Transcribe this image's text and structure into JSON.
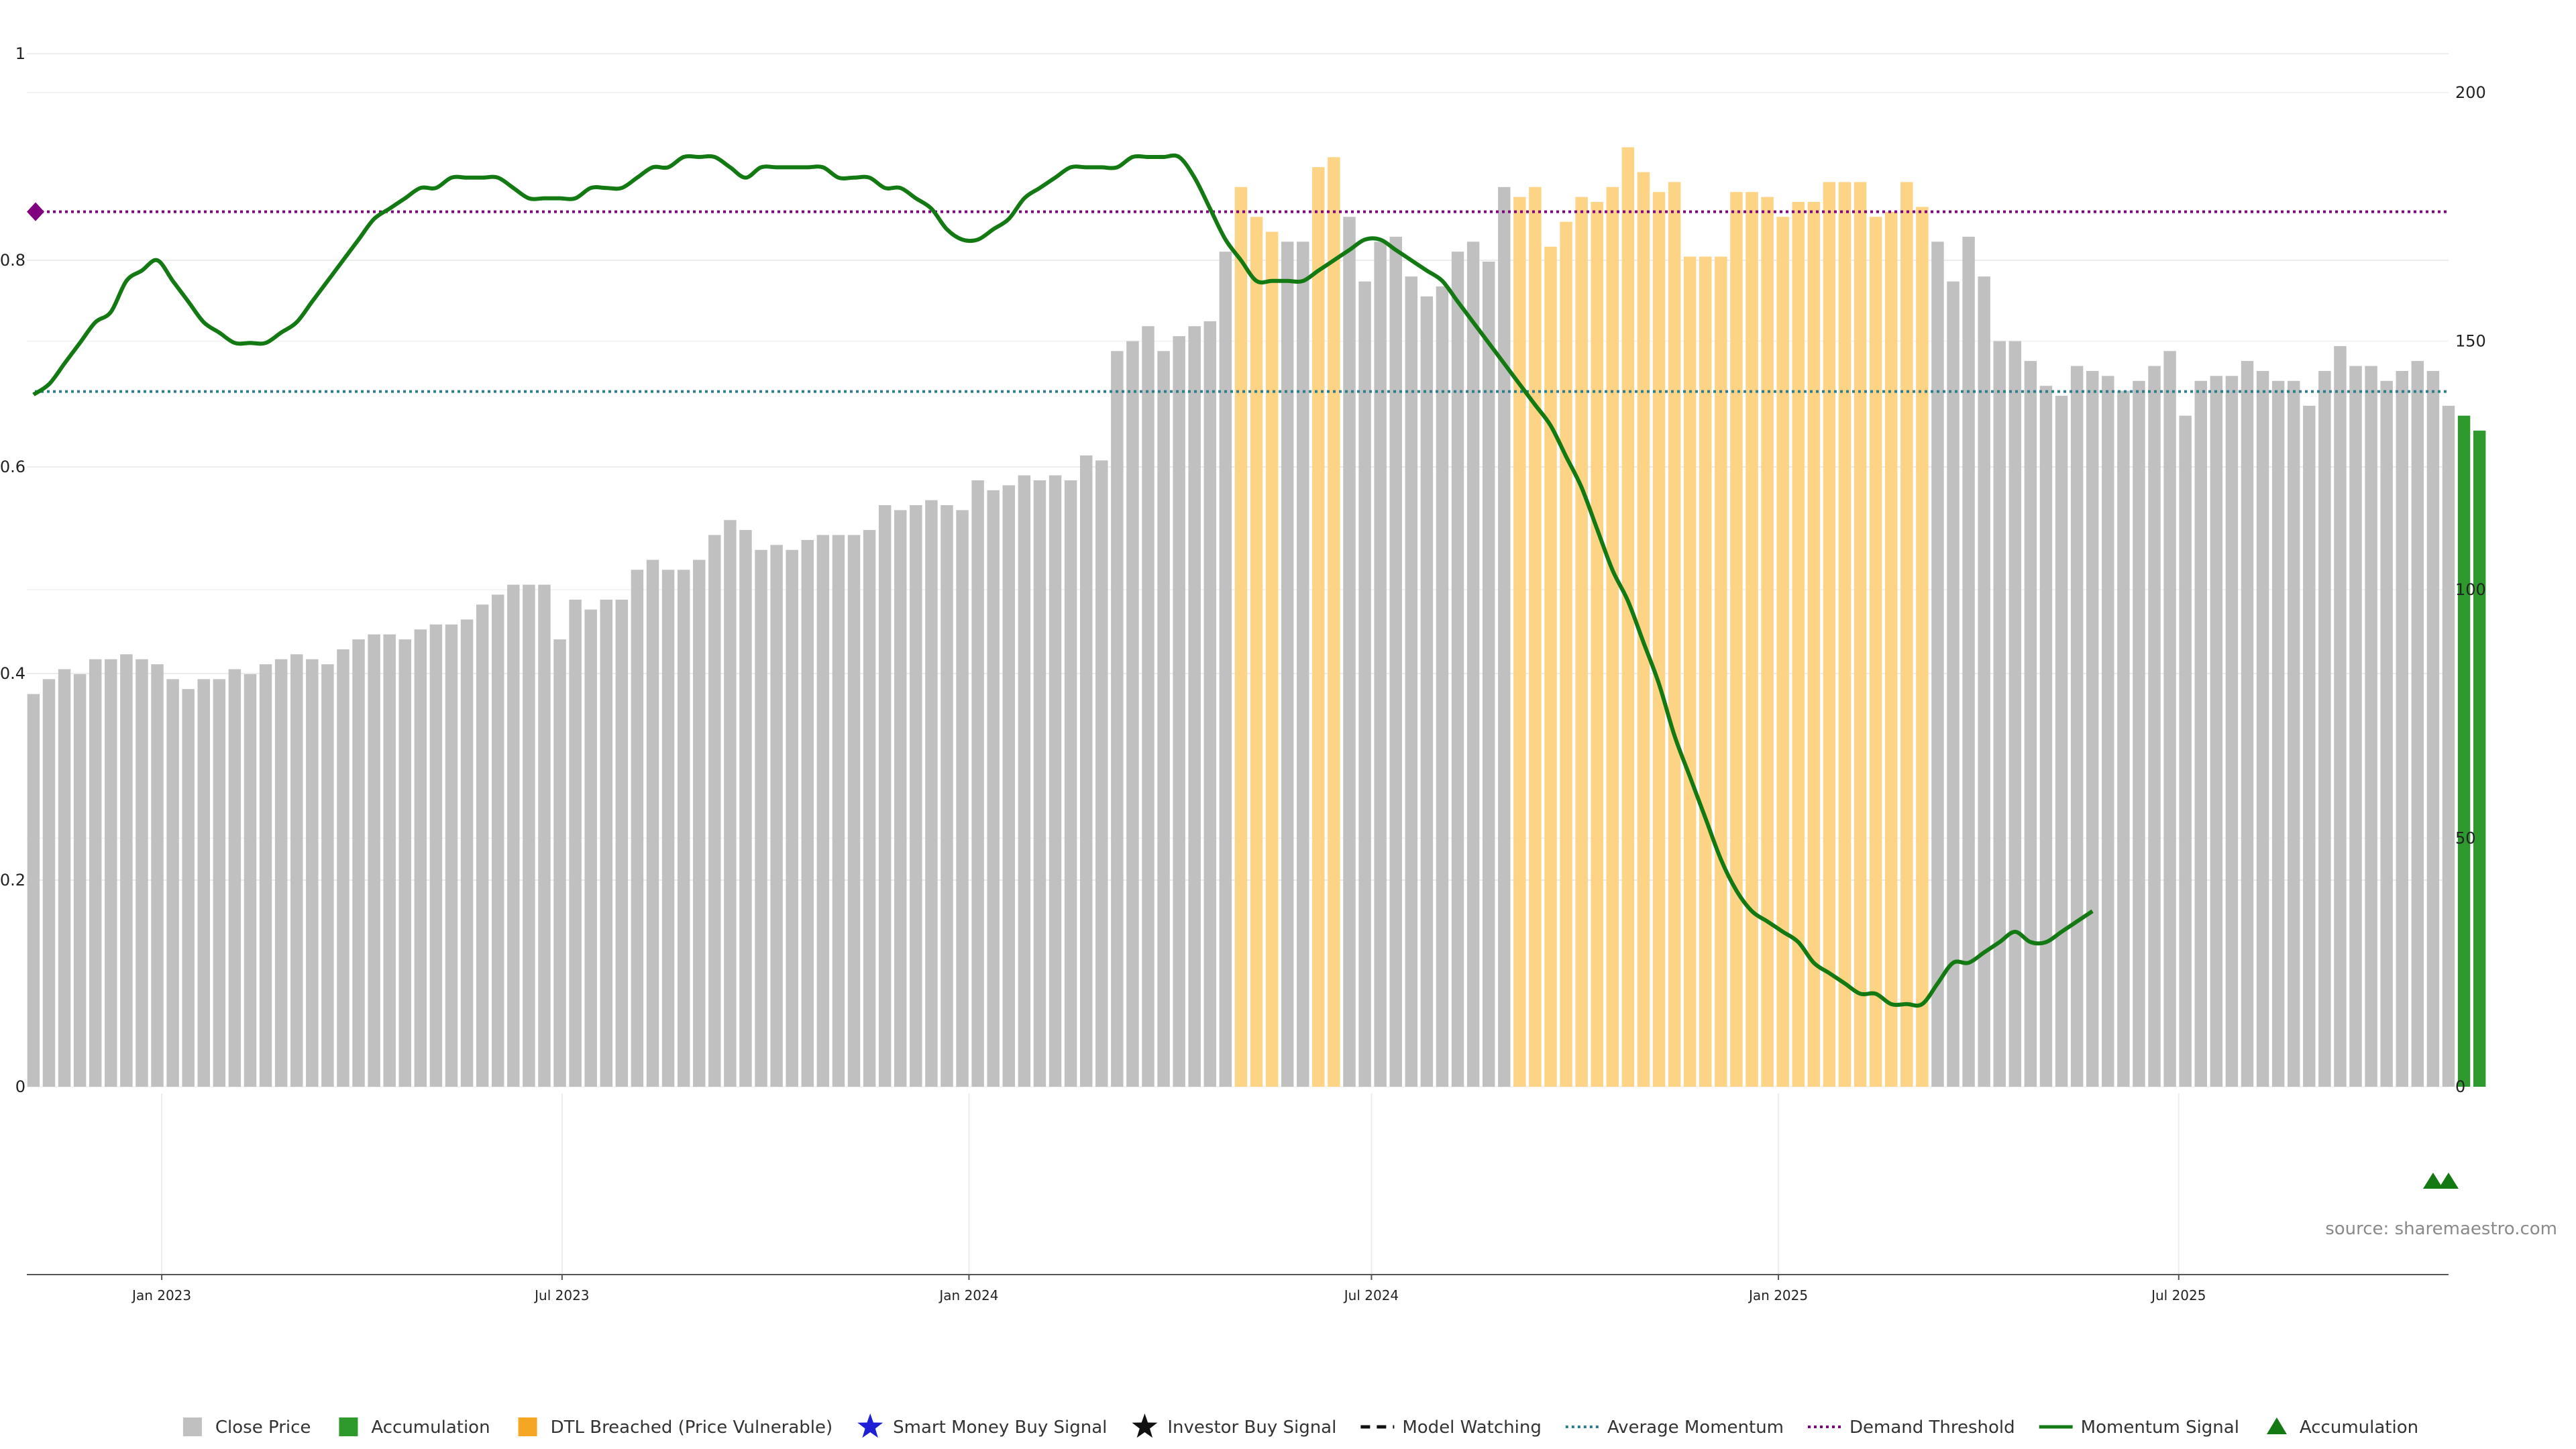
{
  "source_text": "source: sharemaestro.com",
  "chart_data": {
    "type": "bar",
    "left_axis": {
      "ylim": [
        0,
        1
      ],
      "ticks": [
        0,
        0.2,
        0.4,
        0.6,
        0.8,
        1
      ],
      "labels": [
        "0",
        "0.2",
        "0.4",
        "0.6",
        "0.8",
        "1"
      ]
    },
    "right_axis": {
      "ylim": [
        0,
        200
      ],
      "ticks": [
        0,
        50,
        100,
        150,
        200
      ],
      "labels": [
        "0",
        "50",
        "100",
        "150",
        "200"
      ]
    },
    "x_axis": {
      "start": "2022-11-01",
      "end": "2025-10-31",
      "ticks": [
        {
          "date": "2023-01-01",
          "label": "Jan 2023"
        },
        {
          "date": "2023-07-01",
          "label": "Jul 2023"
        },
        {
          "date": "2024-01-01",
          "label": "Jan 2024"
        },
        {
          "date": "2024-07-01",
          "label": "Jul 2024"
        },
        {
          "date": "2025-01-01",
          "label": "Jan 2025"
        },
        {
          "date": "2025-07-01",
          "label": "Jul 2025"
        }
      ]
    },
    "grid": true,
    "colors": {
      "close": "#c0c0c0",
      "accumulation": "#2e9a2e",
      "dtl": "#fdd385",
      "dtl_legend": "#f5a623",
      "momentum": "#137a13",
      "average": "#2e7d8c",
      "demand": "#800080",
      "smart_money": "#1f1fd6",
      "investor": "#111111"
    },
    "close_price": {
      "start": "2022-11-04",
      "interval_days": 7,
      "values": [
        79,
        82,
        84,
        83,
        86,
        86,
        87,
        86,
        85,
        82,
        80,
        82,
        82,
        84,
        83,
        85,
        86,
        87,
        86,
        85,
        88,
        90,
        91,
        91,
        90,
        92,
        93,
        93,
        94,
        97,
        99,
        101,
        101,
        101,
        90,
        98,
        96,
        98,
        98,
        104,
        106,
        104,
        104,
        106,
        111,
        114,
        112,
        108,
        109,
        108,
        110,
        111,
        111,
        111,
        112,
        117,
        116,
        117,
        118,
        117,
        116,
        122,
        120,
        121,
        123,
        122,
        123,
        122,
        127,
        126,
        148,
        150,
        153,
        148,
        151,
        153,
        154,
        168,
        181,
        175,
        172,
        170,
        170,
        185,
        187,
        175,
        162,
        170,
        171,
        163,
        159,
        161,
        168,
        170,
        166,
        181,
        179,
        181,
        169,
        174,
        179,
        178,
        181,
        189,
        184,
        180,
        182,
        167,
        167,
        167,
        180,
        180,
        179,
        175,
        178,
        178,
        182,
        182,
        182,
        175,
        176,
        182,
        177,
        170,
        162,
        171,
        163,
        150,
        150,
        146,
        141,
        139,
        145,
        144,
        143,
        140,
        142,
        145,
        148,
        135,
        142,
        143,
        143,
        146,
        144,
        142,
        142,
        137,
        144,
        149,
        145,
        145,
        142,
        144,
        146,
        144,
        137,
        135,
        132
      ],
      "series_colors": {
        "accumulation": [
          157,
          158
        ],
        "dtl": [
          78,
          79,
          80,
          83,
          84,
          96,
          97,
          98,
          99,
          100,
          101,
          102,
          103,
          104,
          105,
          106,
          107,
          108,
          109,
          110,
          111,
          112,
          113,
          114,
          115,
          116,
          117,
          118,
          119,
          120,
          121,
          122
        ]
      }
    },
    "momentum_signal": {
      "start": "2022-11-04",
      "interval_days": 7,
      "values": [
        0.67,
        0.68,
        0.7,
        0.72,
        0.74,
        0.75,
        0.78,
        0.79,
        0.8,
        0.78,
        0.76,
        0.74,
        0.73,
        0.72,
        0.72,
        0.72,
        0.73,
        0.74,
        0.76,
        0.78,
        0.8,
        0.82,
        0.84,
        0.85,
        0.86,
        0.87,
        0.87,
        0.88,
        0.88,
        0.88,
        0.88,
        0.87,
        0.86,
        0.86,
        0.86,
        0.86,
        0.87,
        0.87,
        0.87,
        0.88,
        0.89,
        0.89,
        0.9,
        0.9,
        0.9,
        0.89,
        0.88,
        0.89,
        0.89,
        0.89,
        0.89,
        0.89,
        0.88,
        0.88,
        0.88,
        0.87,
        0.87,
        0.86,
        0.85,
        0.83,
        0.82,
        0.82,
        0.83,
        0.84,
        0.86,
        0.87,
        0.88,
        0.89,
        0.89,
        0.89,
        0.89,
        0.9,
        0.9,
        0.9,
        0.9,
        0.88,
        0.85,
        0.82,
        0.8,
        0.78,
        0.78,
        0.78,
        0.78,
        0.79,
        0.8,
        0.81,
        0.82,
        0.82,
        0.81,
        0.8,
        0.79,
        0.78,
        0.76,
        0.74,
        0.72,
        0.7,
        0.68,
        0.66,
        0.64,
        0.61,
        0.58,
        0.54,
        0.5,
        0.47,
        0.43,
        0.39,
        0.34,
        0.3,
        0.26,
        0.22,
        0.19,
        0.17,
        0.16,
        0.15,
        0.14,
        0.12,
        0.11,
        0.1,
        0.09,
        0.09,
        0.08,
        0.08,
        0.08,
        0.1,
        0.12,
        0.12,
        0.13,
        0.14,
        0.15,
        0.14,
        0.14,
        0.15,
        0.16,
        0.17
      ]
    },
    "average_momentum": 0.673,
    "demand_threshold": 0.847,
    "demand_marker_value": 0.847,
    "accumulation_markers": {
      "dates": [
        "2025-10-24",
        "2025-10-31"
      ]
    },
    "legend": {
      "position": "bottom-center",
      "items": [
        {
          "label": "Close Price",
          "symbol": "square",
          "color": "#c0c0c0"
        },
        {
          "label": "Accumulation",
          "symbol": "square",
          "color": "#2e9a2e"
        },
        {
          "label": "DTL Breached (Price Vulnerable)",
          "symbol": "square",
          "color": "#f5a623"
        },
        {
          "label": "Smart Money Buy Signal",
          "symbol": "star",
          "color": "#1f1fd6"
        },
        {
          "label": "Investor Buy Signal",
          "symbol": "star",
          "color": "#111111"
        },
        {
          "label": "Model Watching",
          "symbol": "dash",
          "color": "#111111"
        },
        {
          "label": "Average Momentum",
          "symbol": "dotted",
          "color": "#2e7d8c"
        },
        {
          "label": "Demand Threshold",
          "symbol": "dotted",
          "color": "#800080"
        },
        {
          "label": "Momentum Signal",
          "symbol": "solid",
          "color": "#137a13"
        },
        {
          "label": "Accumulation",
          "symbol": "triangle",
          "color": "#137a13"
        }
      ]
    }
  }
}
